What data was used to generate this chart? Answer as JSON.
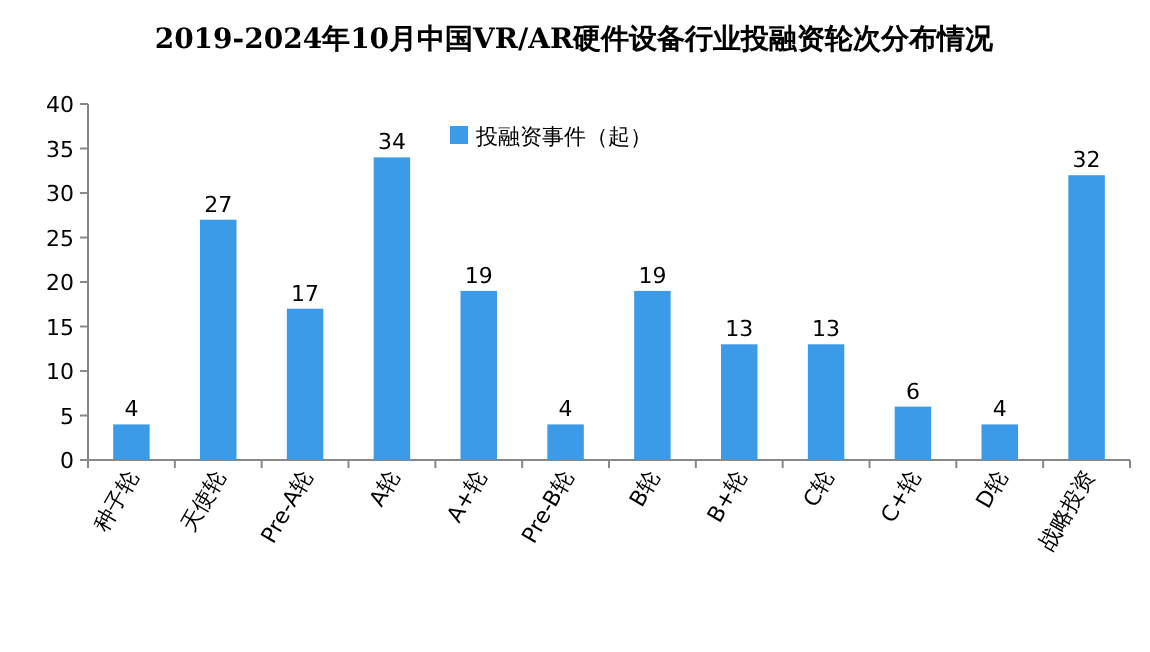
{
  "chart_data": {
    "type": "bar",
    "title": "2019-2024年10月中国VR/AR硬件设备行业投融资轮次分布情况",
    "categories": [
      "种子轮",
      "天使轮",
      "Pre-A轮",
      "A轮",
      "A+轮",
      "Pre-B轮",
      "B轮",
      "B+轮",
      "C轮",
      "C+轮",
      "D轮",
      "战略投资"
    ],
    "series": [
      {
        "name": "投融资事件（起）",
        "color": "#3b9be8",
        "values": [
          4,
          27,
          17,
          34,
          19,
          4,
          19,
          13,
          13,
          6,
          4,
          32
        ]
      }
    ],
    "ylim": [
      0,
      40
    ],
    "yticks": [
      0,
      5,
      10,
      15,
      20,
      25,
      30,
      35,
      40
    ],
    "legend": "top",
    "data_labels": true
  }
}
